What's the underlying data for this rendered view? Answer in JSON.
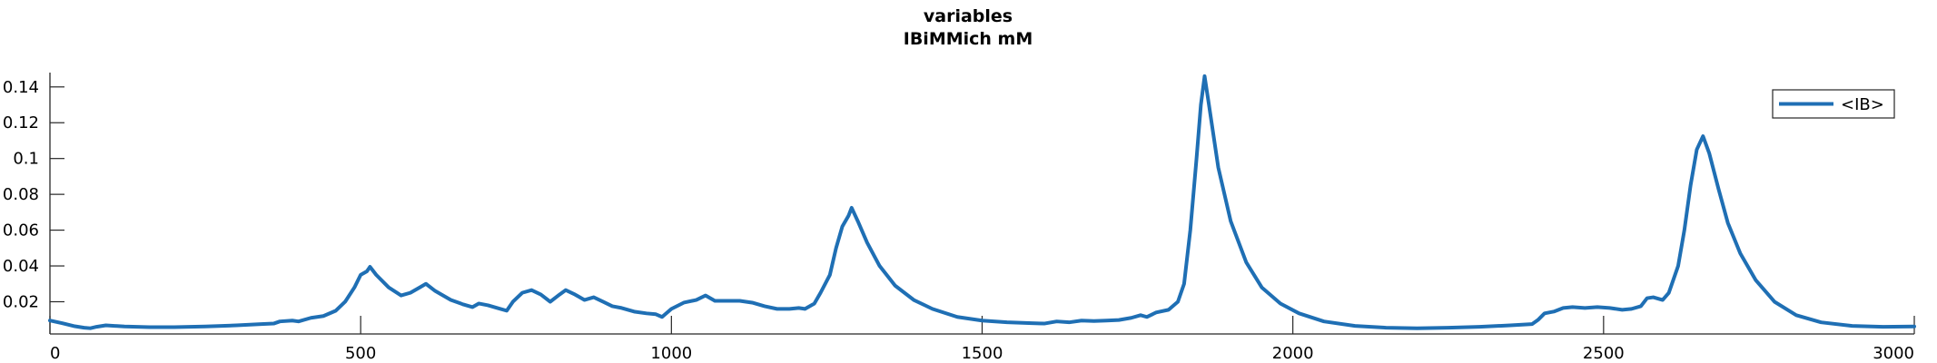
{
  "chart_data": {
    "type": "line",
    "title": "variables",
    "subtitle": "IBiMMich mM",
    "xlabel": "",
    "ylabel": "",
    "xlim": [
      0,
      3000
    ],
    "ylim": [
      0.002,
      0.148
    ],
    "x_ticks": [
      0,
      500,
      1000,
      1500,
      2000,
      2500,
      3000
    ],
    "x_tick_labels": [
      "0",
      "500",
      "1000",
      "1500",
      "2000",
      "2500",
      "3000"
    ],
    "y_ticks": [
      0.02,
      0.04,
      0.06,
      0.08,
      0.1,
      0.12,
      0.14
    ],
    "y_tick_labels": [
      "0.02",
      "0.04",
      "0.06",
      "0.08",
      "0.1",
      "0.12",
      "0.14"
    ],
    "grid": false,
    "legend_position": "top-right",
    "series": [
      {
        "name": "<IB>",
        "color": "#1f6fb4",
        "points": [
          [
            0,
            0.0095
          ],
          [
            20,
            0.008
          ],
          [
            40,
            0.0063
          ],
          [
            55,
            0.0055
          ],
          [
            65,
            0.0052
          ],
          [
            75,
            0.006
          ],
          [
            90,
            0.0068
          ],
          [
            120,
            0.0062
          ],
          [
            160,
            0.0058
          ],
          [
            200,
            0.0058
          ],
          [
            250,
            0.0062
          ],
          [
            300,
            0.0068
          ],
          [
            340,
            0.0075
          ],
          [
            360,
            0.0078
          ],
          [
            370,
            0.009
          ],
          [
            390,
            0.0095
          ],
          [
            400,
            0.009
          ],
          [
            420,
            0.011
          ],
          [
            440,
            0.012
          ],
          [
            460,
            0.015
          ],
          [
            475,
            0.02
          ],
          [
            490,
            0.028
          ],
          [
            500,
            0.035
          ],
          [
            510,
            0.037
          ],
          [
            515,
            0.0395
          ],
          [
            525,
            0.035
          ],
          [
            545,
            0.028
          ],
          [
            565,
            0.0235
          ],
          [
            580,
            0.025
          ],
          [
            595,
            0.028
          ],
          [
            605,
            0.03
          ],
          [
            620,
            0.026
          ],
          [
            645,
            0.021
          ],
          [
            665,
            0.0185
          ],
          [
            680,
            0.017
          ],
          [
            690,
            0.019
          ],
          [
            705,
            0.018
          ],
          [
            720,
            0.0165
          ],
          [
            735,
            0.015
          ],
          [
            745,
            0.02
          ],
          [
            760,
            0.025
          ],
          [
            775,
            0.0265
          ],
          [
            790,
            0.024
          ],
          [
            805,
            0.02
          ],
          [
            820,
            0.024
          ],
          [
            830,
            0.0265
          ],
          [
            845,
            0.024
          ],
          [
            860,
            0.021
          ],
          [
            875,
            0.0225
          ],
          [
            890,
            0.02
          ],
          [
            905,
            0.0175
          ],
          [
            920,
            0.0165
          ],
          [
            940,
            0.0145
          ],
          [
            960,
            0.0135
          ],
          [
            975,
            0.013
          ],
          [
            985,
            0.0115
          ],
          [
            1000,
            0.016
          ],
          [
            1020,
            0.0195
          ],
          [
            1040,
            0.021
          ],
          [
            1055,
            0.0235
          ],
          [
            1070,
            0.0205
          ],
          [
            1090,
            0.0205
          ],
          [
            1110,
            0.0205
          ],
          [
            1130,
            0.0195
          ],
          [
            1150,
            0.0175
          ],
          [
            1170,
            0.016
          ],
          [
            1190,
            0.016
          ],
          [
            1205,
            0.0165
          ],
          [
            1215,
            0.016
          ],
          [
            1230,
            0.019
          ],
          [
            1240,
            0.025
          ],
          [
            1255,
            0.035
          ],
          [
            1265,
            0.05
          ],
          [
            1275,
            0.062
          ],
          [
            1285,
            0.068
          ],
          [
            1290,
            0.0725
          ],
          [
            1300,
            0.065
          ],
          [
            1315,
            0.053
          ],
          [
            1335,
            0.04
          ],
          [
            1360,
            0.029
          ],
          [
            1390,
            0.021
          ],
          [
            1420,
            0.016
          ],
          [
            1460,
            0.0115
          ],
          [
            1500,
            0.0095
          ],
          [
            1540,
            0.0085
          ],
          [
            1580,
            0.008
          ],
          [
            1600,
            0.0078
          ],
          [
            1620,
            0.009
          ],
          [
            1640,
            0.0085
          ],
          [
            1660,
            0.0095
          ],
          [
            1680,
            0.0092
          ],
          [
            1700,
            0.0095
          ],
          [
            1720,
            0.0098
          ],
          [
            1740,
            0.011
          ],
          [
            1755,
            0.0125
          ],
          [
            1765,
            0.0115
          ],
          [
            1780,
            0.014
          ],
          [
            1800,
            0.0155
          ],
          [
            1815,
            0.02
          ],
          [
            1825,
            0.03
          ],
          [
            1835,
            0.06
          ],
          [
            1845,
            0.1
          ],
          [
            1852,
            0.13
          ],
          [
            1858,
            0.146
          ],
          [
            1865,
            0.13
          ],
          [
            1880,
            0.095
          ],
          [
            1900,
            0.065
          ],
          [
            1925,
            0.042
          ],
          [
            1950,
            0.028
          ],
          [
            1980,
            0.019
          ],
          [
            2010,
            0.0135
          ],
          [
            2050,
            0.009
          ],
          [
            2100,
            0.0065
          ],
          [
            2150,
            0.0055
          ],
          [
            2200,
            0.0052
          ],
          [
            2250,
            0.0055
          ],
          [
            2300,
            0.006
          ],
          [
            2350,
            0.0068
          ],
          [
            2385,
            0.0075
          ],
          [
            2395,
            0.01
          ],
          [
            2405,
            0.0135
          ],
          [
            2420,
            0.0145
          ],
          [
            2435,
            0.0165
          ],
          [
            2450,
            0.017
          ],
          [
            2470,
            0.0165
          ],
          [
            2490,
            0.017
          ],
          [
            2510,
            0.0165
          ],
          [
            2530,
            0.0155
          ],
          [
            2545,
            0.016
          ],
          [
            2560,
            0.0175
          ],
          [
            2570,
            0.022
          ],
          [
            2580,
            0.0225
          ],
          [
            2595,
            0.021
          ],
          [
            2605,
            0.025
          ],
          [
            2620,
            0.04
          ],
          [
            2630,
            0.06
          ],
          [
            2640,
            0.085
          ],
          [
            2650,
            0.105
          ],
          [
            2660,
            0.1125
          ],
          [
            2670,
            0.103
          ],
          [
            2685,
            0.083
          ],
          [
            2700,
            0.064
          ],
          [
            2720,
            0.047
          ],
          [
            2745,
            0.032
          ],
          [
            2775,
            0.02
          ],
          [
            2810,
            0.0125
          ],
          [
            2850,
            0.0085
          ],
          [
            2900,
            0.0065
          ],
          [
            2950,
            0.006
          ],
          [
            3000,
            0.0062
          ]
        ]
      }
    ]
  }
}
